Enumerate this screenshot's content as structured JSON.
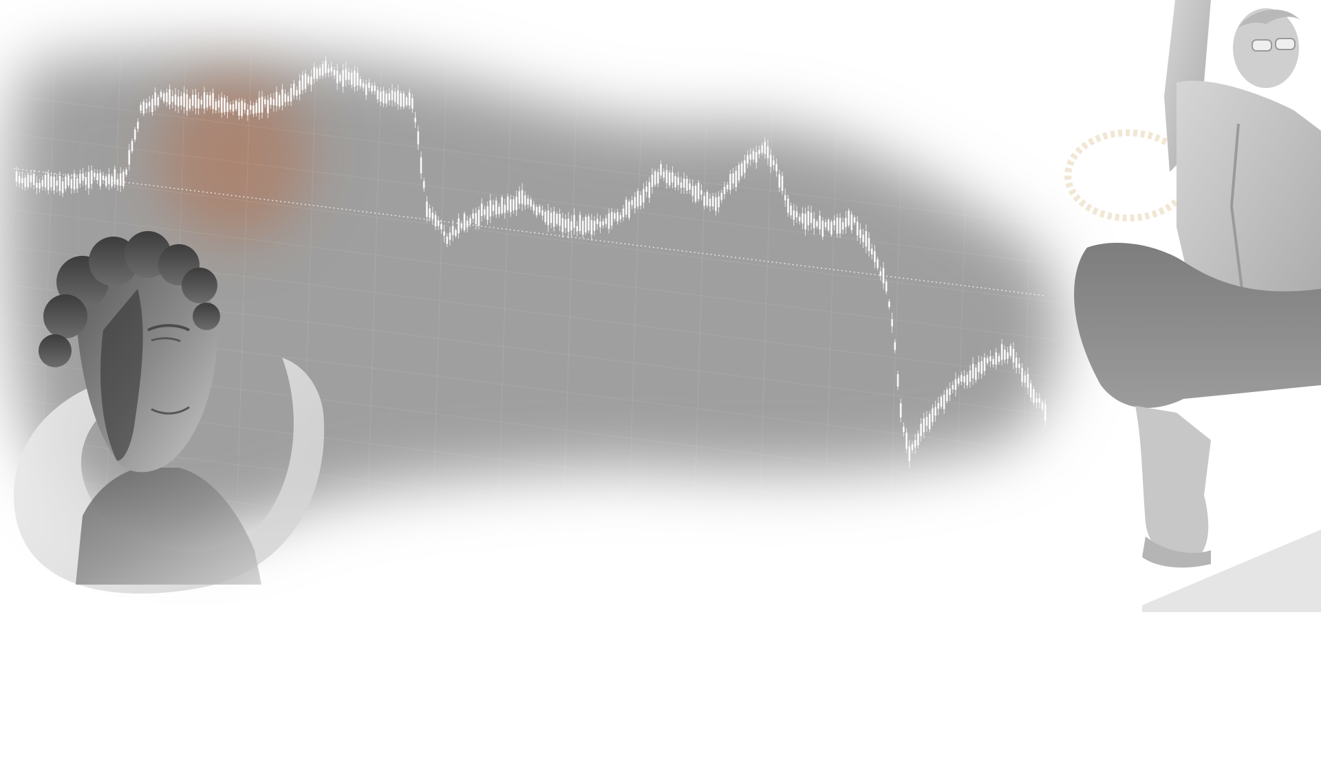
{
  "scene": {
    "background_color": "#ffffff",
    "haze_color": "#9a9a9a",
    "glow_color": "#b5653a",
    "candle_color": "#ffffff",
    "statue_color": "#b8b8b8",
    "ring_color": "#e2e2e2"
  },
  "decor": {
    "chart_icon": "candlestick-chart-icon",
    "bust_icon": "classical-bust-icon",
    "statue_icon": "sitting-statue-icon",
    "ring_icon": "circular-text-ring-icon"
  }
}
